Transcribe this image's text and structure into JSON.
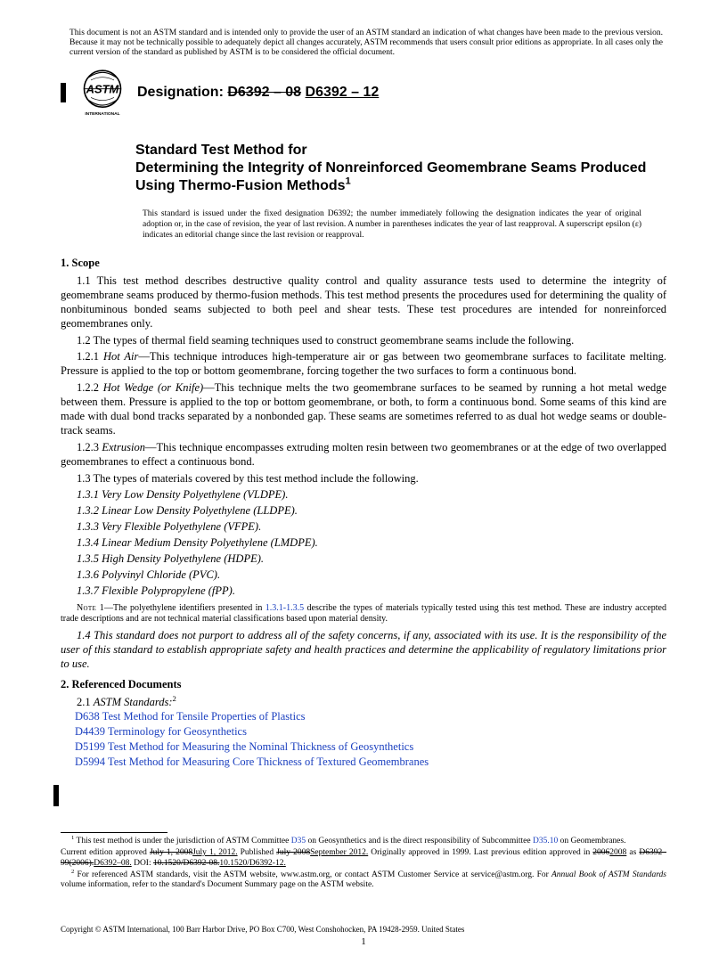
{
  "disclaimer": "This document is not an ASTM standard and is intended only to provide the user of an ASTM standard an indication of what changes have been made to the previous version. Because it may not be technically possible to adequately depict all changes accurately, ASTM recommends that users consult prior editions as appropriate. In all cases only the current version of the standard as published by ASTM is to be considered the official document.",
  "designation_label": "Designation:",
  "designation_old": "D6392 – 08",
  "designation_new": "D6392 – 12",
  "logo_label": "INTERNATIONAL",
  "title_line1": "Standard Test Method for",
  "title_line2": "Determining the Integrity of Nonreinforced Geomembrane Seams Produced Using Thermo-Fusion Methods",
  "title_sup": "1",
  "issued_note": "This standard is issued under the fixed designation D6392; the number immediately following the designation indicates the year of original adoption or, in the case of revision, the year of last revision. A number in parentheses indicates the year of last reapproval. A superscript epsilon (ε) indicates an editorial change since the last revision or reapproval.",
  "s1": {
    "head": "1. Scope",
    "p11": "1.1 This test method describes destructive quality control and quality assurance tests used to determine the integrity of geomembrane seams produced by thermo-fusion methods. This test method presents the procedures used for determining the quality of nonbituminous bonded seams subjected to both peel and shear tests. These test procedures are intended for nonreinforced geomembranes only.",
    "p12": "1.2 The types of thermal field seaming techniques used to construct geomembrane seams include the following.",
    "p121_head": "1.2.1 ",
    "p121_name": "Hot Air",
    "p121_text": "—This technique introduces high-temperature air or gas between two geomembrane surfaces to facilitate melting. Pressure is applied to the top or bottom geomembrane, forcing together the two surfaces to form a continuous bond.",
    "p122_head": "1.2.2 ",
    "p122_name": "Hot Wedge (or Knife)",
    "p122_text": "—This technique melts the two geomembrane surfaces to be seamed by running a hot metal wedge between them. Pressure is applied to the top or bottom geomembrane, or both, to form a continuous bond. Some seams of this kind are made with dual bond tracks separated by a nonbonded gap. These seams are sometimes referred to as dual hot wedge seams or double-track seams.",
    "p123_head": "1.2.3 ",
    "p123_name": "Extrusion",
    "p123_text": "—This technique encompasses extruding molten resin between two geomembranes or at the edge of two overlapped geomembranes to effect a continuous bond.",
    "p13": "1.3 The types of materials covered by this test method include the following.",
    "mats": [
      "1.3.1 Very Low Density Polyethylene (VLDPE).",
      "1.3.2 Linear Low Density Polyethylene (LLDPE).",
      "1.3.3 Very Flexible Polyethylene (VFPE).",
      "1.3.4 Linear Medium Density Polyethylene (LMDPE).",
      "1.3.5 High Density Polyethylene (HDPE).",
      "1.3.6 Polyvinyl Chloride (PVC).",
      "1.3.7 Flexible Polypropylene (fPP)."
    ],
    "note1_label": "Note 1",
    "note1_a": "—The polyethylene identifiers presented in ",
    "note1_link": "1.3.1-1.3.5",
    "note1_b": " describe the types of materials typically tested using this test method. These are industry accepted trade descriptions and are not technical material classifications based upon material density.",
    "p14": "1.4 This standard does not purport to address all of the safety concerns, if any, associated with its use. It is the responsibility of the user of this standard to establish appropriate safety and health practices and determine the applicability of regulatory limitations prior to use."
  },
  "s2": {
    "head": "2. Referenced Documents",
    "astm_line": "2.1 ",
    "astm_label": "ASTM Standards:",
    "astm_sup": "2",
    "refs": [
      {
        "code": "D638",
        "title": " Test Method for Tensile Properties of Plastics"
      },
      {
        "code": "D4439",
        "title": " Terminology for Geosynthetics"
      },
      {
        "code": "D5199",
        "title": " Test Method for Measuring the Nominal Thickness of Geosynthetics"
      },
      {
        "code": "D5994",
        "title": " Test Method for Measuring Core Thickness of Textured Geomembranes"
      }
    ]
  },
  "footnotes": {
    "f1a": " This test method is under the jurisdiction of ASTM Committee ",
    "f1b": " on Geosynthetics and is the direct responsibility of Subcommittee ",
    "f1c": " on Geomembranes.",
    "f1_committee": "D35",
    "f1_sub": "D35.10",
    "f1_line2_a": "Current edition approved ",
    "f1_old_date": "July 1, 2008",
    "f1_new_date1": "July 1, 2012.",
    "f1_pub": " Published ",
    "f1_old_pub": "July 2008",
    "f1_new_pub": "September 2012.",
    "f1_orig": " Originally approved in 1999. Last previous edition approved in ",
    "f1_yr_old": "2006",
    "f1_yr_new": "2008",
    "f1_as": " as ",
    "f1_desig_old": "D6392–99(2006).",
    "f1_desig_new": "D6392–08.",
    "f1_doi": " DOI: ",
    "f1_doi_old": "10.1520/D6392-08.",
    "f1_doi_new": "10.1520/D6392-12.",
    "f2_a": " For referenced ASTM standards, visit the ASTM website, www.astm.org, or contact ASTM Customer Service at service@astm.org. For ",
    "f2_b": "Annual Book of ASTM Standards",
    "f2_c": " volume information, refer to the standard's Document Summary page on the ASTM website."
  },
  "copyright": "Copyright © ASTM International, 100 Barr Harbor Drive, PO Box C700, West Conshohocken, PA 19428-2959. United States",
  "pagenum": "1"
}
